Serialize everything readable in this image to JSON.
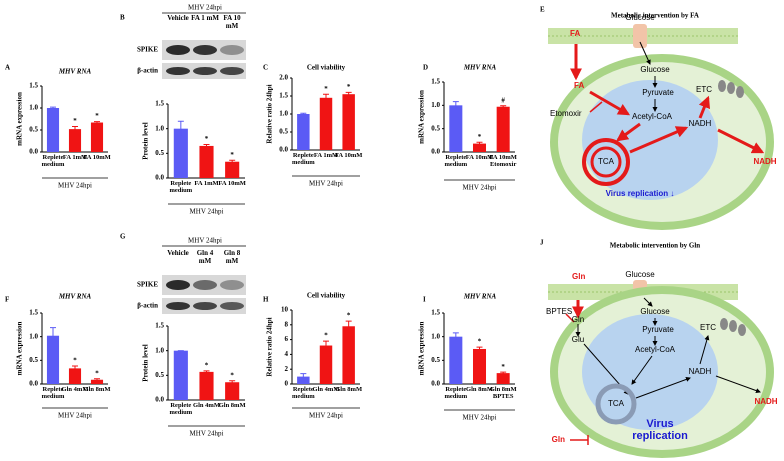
{
  "chart_data": [
    {
      "panel": "A",
      "type": "bar",
      "title": "MHV RNA",
      "ylabel": "mRNA expression",
      "xlabel": "MHV 24hpi",
      "categories": [
        "Replete medium",
        "FA 1mM",
        "FA 10mM"
      ],
      "values": [
        1.0,
        0.52,
        0.67
      ],
      "errors": [
        0.02,
        0.06,
        0.02
      ],
      "markers": [
        null,
        "*",
        "*"
      ],
      "colors": [
        "#5b5bf5",
        "#f01414",
        "#f01414"
      ],
      "ylim": [
        0,
        1.5
      ],
      "yticks": [
        {
          "value": 0,
          "label": "0.0"
        },
        0.5,
        {
          "value": 1,
          "label": "1.0"
        },
        1.5
      ]
    },
    {
      "panel": "B",
      "type": "bar",
      "ylabel": "Protein level",
      "xlabel": "MHV 24hpi",
      "categories": [
        "Replete medium",
        "FA 1mM",
        "FA 10mM"
      ],
      "values": [
        1.0,
        0.65,
        0.33
      ],
      "errors": [
        0.15,
        0.03,
        0.03
      ],
      "markers": [
        null,
        "*",
        "*"
      ],
      "colors": [
        "#5b5bf5",
        "#f01414",
        "#f01414"
      ],
      "ylim": [
        0,
        1.5
      ],
      "yticks": [
        {
          "value": 0,
          "label": "0.0"
        },
        0.5,
        {
          "value": 1,
          "label": "1.0"
        },
        1.5
      ]
    },
    {
      "panel": "C",
      "type": "bar",
      "title": "Cell viability",
      "ylabel": "Relative ratio 24hpi",
      "xlabel": "MHV 24hpi",
      "categories": [
        "Replete medium",
        "FA 1mM",
        "FA 10mM"
      ],
      "values": [
        1.0,
        1.45,
        1.55
      ],
      "errors": [
        0.02,
        0.1,
        0.05
      ],
      "markers": [
        null,
        "*",
        "*"
      ],
      "colors": [
        "#5b5bf5",
        "#f01414",
        "#f01414"
      ],
      "ylim": [
        0,
        2
      ],
      "yticks": [
        {
          "value": 0,
          "label": "0.0"
        },
        0.5,
        {
          "value": 1,
          "label": "1.0"
        },
        1.5,
        {
          "value": 2,
          "label": "2.0"
        }
      ]
    },
    {
      "panel": "D",
      "type": "bar",
      "title": "MHV RNA",
      "ylabel": "mRNA expression",
      "xlabel": "MHV 24hpi",
      "categories": [
        "Replete medium",
        "FA 10mM",
        "FA 10mM Etomoxir"
      ],
      "values": [
        1.0,
        0.18,
        0.97
      ],
      "errors": [
        0.08,
        0.03,
        0.02
      ],
      "markers": [
        null,
        "*",
        "#"
      ],
      "colors": [
        "#5b5bf5",
        "#f01414",
        "#f01414"
      ],
      "ylim": [
        0,
        1.5
      ],
      "yticks": [
        {
          "value": 0,
          "label": "0.0"
        },
        0.5,
        {
          "value": 1,
          "label": "1.0"
        },
        1.5
      ]
    },
    {
      "panel": "F",
      "type": "bar",
      "title": "MHV RNA",
      "ylabel": "mRNA expression",
      "xlabel": "MHV 24hpi",
      "categories": [
        "Replete medium",
        "Gln 4mM",
        "Gln 8mM"
      ],
      "values": [
        1.02,
        0.33,
        0.09
      ],
      "errors": [
        0.17,
        0.05,
        0.02
      ],
      "markers": [
        null,
        "*",
        "*"
      ],
      "colors": [
        "#5b5bf5",
        "#f01414",
        "#f01414"
      ],
      "ylim": [
        0,
        1.5
      ],
      "yticks": [
        {
          "value": 0,
          "label": "0.0"
        },
        0.5,
        {
          "value": 1,
          "label": "1.0"
        },
        1.5
      ]
    },
    {
      "panel": "G",
      "type": "bar",
      "ylabel": "Protein level",
      "xlabel": "MHV 24hpi",
      "categories": [
        "Replete medium",
        "Gln 4mM",
        "Gln 8mM"
      ],
      "values": [
        1.0,
        0.57,
        0.36
      ],
      "errors": [
        0,
        0.02,
        0.03
      ],
      "markers": [
        null,
        "*",
        "*"
      ],
      "colors": [
        "#5b5bf5",
        "#f01414",
        "#f01414"
      ],
      "ylim": [
        0,
        1.5
      ],
      "yticks": [
        {
          "value": 0,
          "label": "0.0"
        },
        0.5,
        {
          "value": 1,
          "label": "1.0"
        },
        1.5
      ]
    },
    {
      "panel": "H",
      "type": "bar",
      "title": "Cell viability",
      "ylabel": "Relative ratio 24hpi",
      "xlabel": "MHV 24hpi",
      "categories": [
        "Replete medium",
        "Gln 4mM",
        "Gln 8mM"
      ],
      "values": [
        1.0,
        5.2,
        7.8
      ],
      "errors": [
        0.4,
        0.6,
        0.7
      ],
      "markers": [
        null,
        "*",
        "*"
      ],
      "colors": [
        "#5b5bf5",
        "#f01414",
        "#f01414"
      ],
      "ylim": [
        0,
        10
      ],
      "yticks": [
        0,
        2,
        4,
        6,
        8,
        10
      ]
    },
    {
      "panel": "I",
      "type": "bar",
      "title": "MHV RNA",
      "ylabel": "mRNA expression",
      "xlabel": "MHV 24hpi",
      "categories": [
        "Replete medium",
        "Gln 8mM",
        "Gln 8mM BPTES"
      ],
      "values": [
        1.0,
        0.74,
        0.23
      ],
      "errors": [
        0.08,
        0.04,
        0.02
      ],
      "markers": [
        null,
        "*",
        "*"
      ],
      "colors": [
        "#5b5bf5",
        "#f01414",
        "#f01414"
      ],
      "ylim": [
        0,
        1.5
      ],
      "yticks": [
        {
          "value": 0,
          "label": "0.0"
        },
        0.5,
        {
          "value": 1,
          "label": "1.0"
        },
        1.5
      ]
    }
  ],
  "blots": [
    {
      "header": "MHV 24hpi",
      "lanes": [
        "Vehicle",
        "FA 1 mM",
        "FA 10 mM"
      ],
      "rows": [
        "SPIKE",
        "β-actin"
      ]
    },
    {
      "header": "MHV 24hpi",
      "lanes": [
        "Vehicle",
        "Gln 4 mM",
        "Gln 8 mM"
      ],
      "rows": [
        "SPIKE",
        "β-actin"
      ]
    }
  ],
  "diagrams": [
    {
      "panel": "E",
      "title": "Metabolic intervention by FA",
      "labels": {
        "fa_in": "FA",
        "glucose_in": "Glucose",
        "glucose": "Glucose",
        "fa": "FA",
        "etomoxir": "Etomoxir",
        "pyruvate": "Pyruvate",
        "acetyl_coa": "Acetyl-CoA",
        "etc": "ETC",
        "nadh": "NADH",
        "nadh_out": "NADH",
        "tca": "TCA",
        "virus": "Virus replication ↓"
      }
    },
    {
      "panel": "J",
      "title": "Metabolic intervention by Gln",
      "labels": {
        "gln_in": "Gln",
        "glucose_in": "Glucose",
        "bptes": "BPTES",
        "gln": "Gln",
        "glu": "Glu",
        "glucose": "Glucose",
        "pyruvate": "Pyruvate",
        "etc": "ETC",
        "acetyl_coa": "Acetyl-CoA",
        "nadh": "NADH",
        "nadh_out": "NADH",
        "tca": "TCA",
        "gln_inhibit": "Gln",
        "virus": "Virus replication"
      }
    }
  ]
}
